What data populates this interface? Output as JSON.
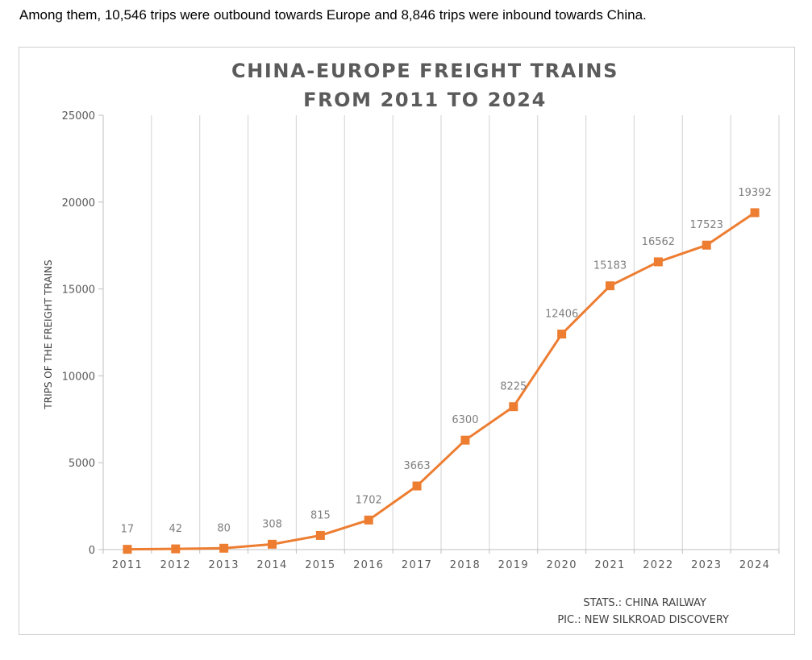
{
  "intro_text": "Among them, 10,546 trips were outbound towards Europe and 8,846 trips were inbound towards China.",
  "credits": {
    "stats": "STATS.: CHINA RAILWAY",
    "pic": "PIC.: NEW SILKROAD DISCOVERY"
  },
  "colors": {
    "line": "#ed7d31",
    "grid": "#d9d9d9",
    "axis": "#bfbfbf"
  },
  "chart_data": {
    "type": "line",
    "title_lines": [
      "CHINA-EUROPE FREIGHT TRAINS",
      "FROM 2011 TO 2024"
    ],
    "xlabel": "",
    "ylabel": "TRIPS OF THE FREIGHT TRAINS",
    "ylim": [
      0,
      25000
    ],
    "yticks": [
      0,
      5000,
      10000,
      15000,
      20000,
      25000
    ],
    "grid": "vertical",
    "marker": "square",
    "data_labels": true,
    "categories": [
      "2011",
      "2012",
      "2013",
      "2014",
      "2015",
      "2016",
      "2017",
      "2018",
      "2019",
      "2020",
      "2021",
      "2022",
      "2023",
      "2024"
    ],
    "series": [
      {
        "values": [
          17,
          42,
          80,
          308,
          815,
          1702,
          3663,
          6300,
          8225,
          12406,
          15183,
          16562,
          17523,
          19392
        ]
      }
    ]
  }
}
